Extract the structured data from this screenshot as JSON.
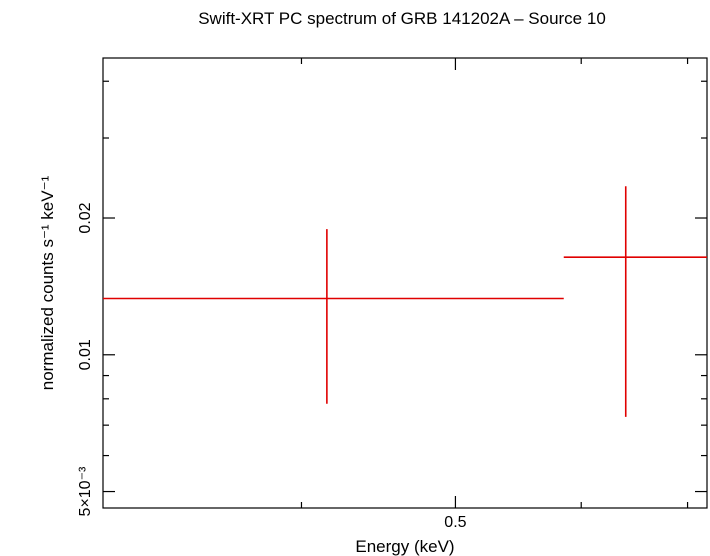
{
  "chart_data": {
    "type": "scatter",
    "title": "Swift-XRT PC spectrum of GRB 141202A – Source 10",
    "xlabel": "Energy (keV)",
    "ylabel": "normalized counts s⁻¹ keV⁻¹",
    "x_scale": "log",
    "y_scale": "log",
    "xlim": [
      0.3,
      0.72
    ],
    "ylim": [
      0.0046,
      0.045
    ],
    "x_ticks_labeled": [
      {
        "value": 0.5,
        "label": "0.5"
      }
    ],
    "y_ticks_labeled": [
      {
        "value": 0.005,
        "label": "5×10⁻³"
      },
      {
        "value": 0.01,
        "label": "0.01"
      },
      {
        "value": 0.02,
        "label": "0.02"
      }
    ],
    "x_minor_ticks": [
      0.4,
      0.6,
      0.7
    ],
    "y_minor_ticks": [
      0.006,
      0.007,
      0.008,
      0.009,
      0.03,
      0.04
    ],
    "grid": false,
    "series": [
      {
        "color": "#e00000",
        "points": [
          {
            "x": 0.415,
            "x_low": 0.3,
            "x_high": 0.585,
            "y": 0.0133,
            "y_low": 0.0078,
            "y_high": 0.0189
          },
          {
            "x": 0.64,
            "x_low": 0.585,
            "x_high": 0.72,
            "y": 0.0164,
            "y_low": 0.0073,
            "y_high": 0.0235
          }
        ]
      }
    ]
  }
}
